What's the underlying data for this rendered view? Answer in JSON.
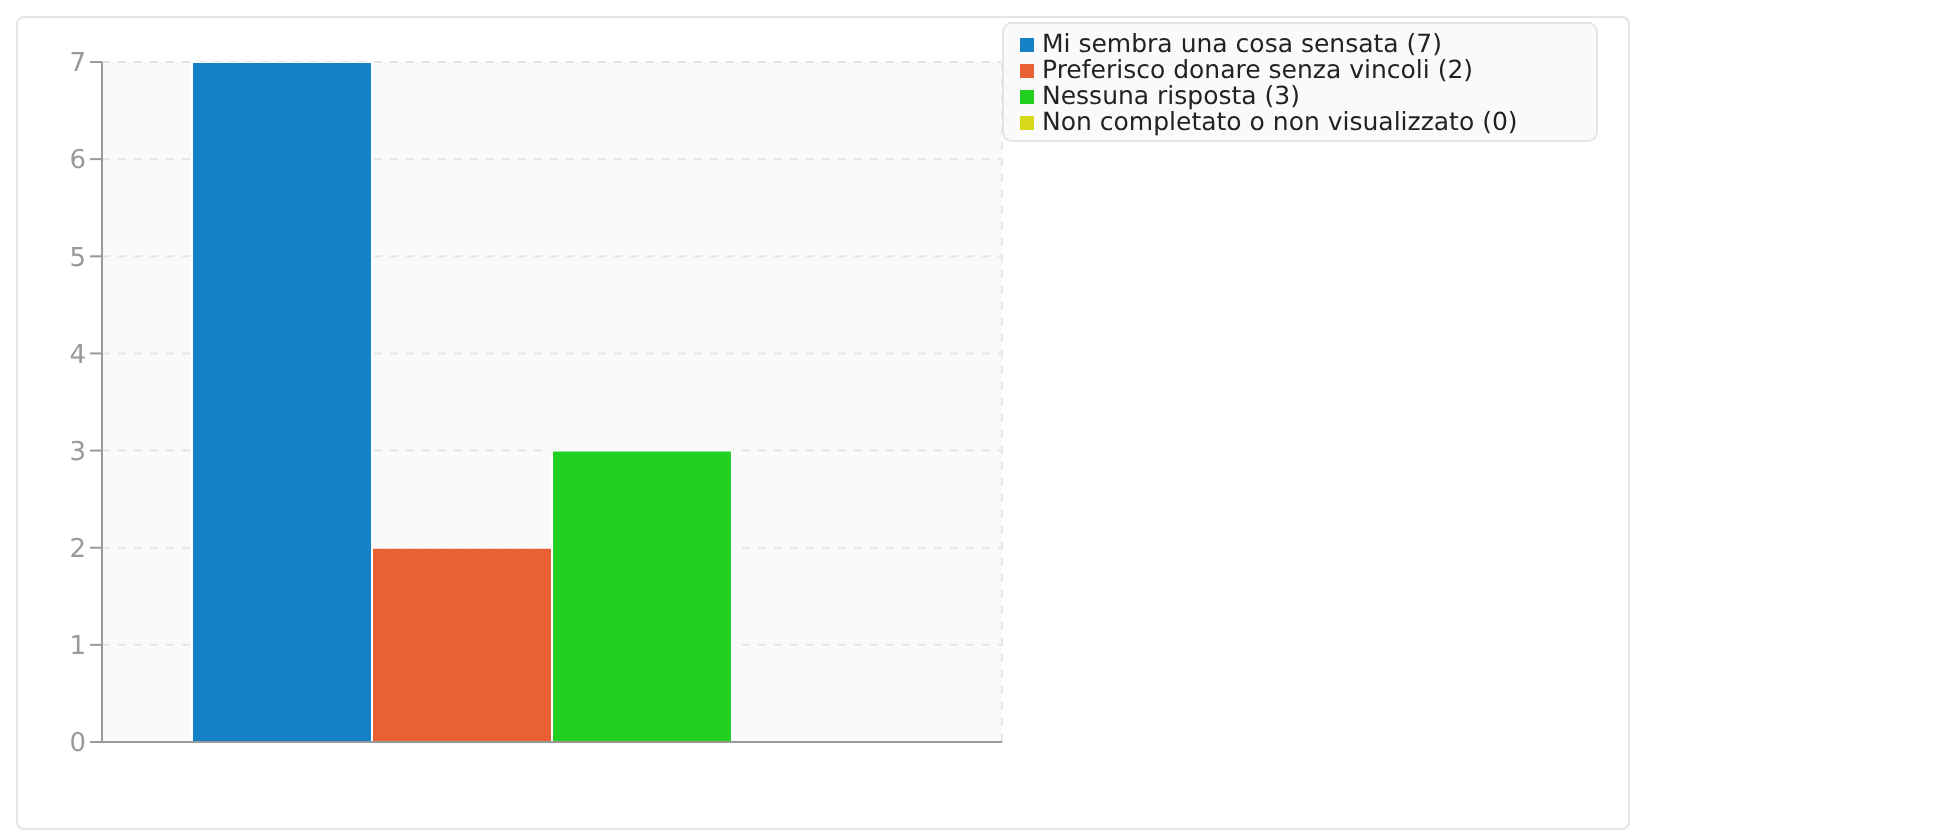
{
  "chart_data": {
    "type": "bar",
    "categories": [
      null
    ],
    "series": [
      {
        "name": "Mi sembra una cosa sensata (7)",
        "color": "#1582c8",
        "values": [
          7
        ]
      },
      {
        "name": "Preferisco donare senza vincoli (2)",
        "color": "#e86034",
        "values": [
          2
        ]
      },
      {
        "name": "Nessuna risposta (3)",
        "color": "#22d022",
        "values": [
          3
        ]
      },
      {
        "name": "Non completato o non visualizzato (0)",
        "color": "#d8d81a",
        "values": [
          0
        ]
      }
    ],
    "ylim": [
      0,
      7
    ],
    "yticks": [
      0,
      1,
      2,
      3,
      4,
      5,
      6,
      7
    ],
    "grid": true,
    "legend": "top right"
  }
}
